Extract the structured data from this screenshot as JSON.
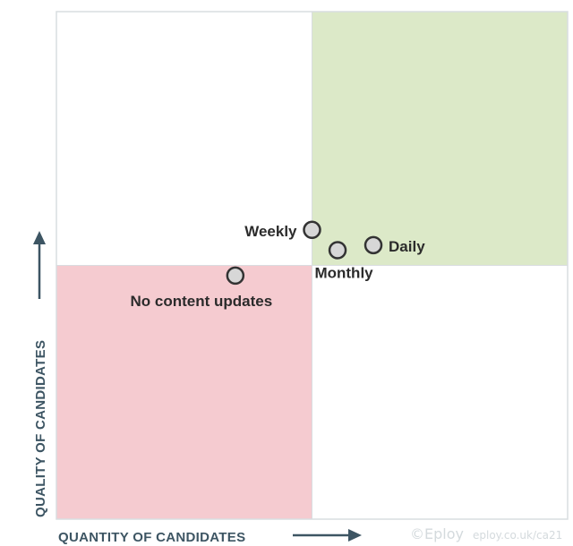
{
  "chart_data": {
    "type": "scatter",
    "title": "",
    "xlabel": "QUANTITY OF CANDIDATES",
    "ylabel": "QUALITY OF CANDIDATES",
    "xlim": [
      0,
      1
    ],
    "ylim": [
      0,
      1
    ],
    "grid": false,
    "quadrants": [
      {
        "position": "top-left",
        "color": "#ffffff"
      },
      {
        "position": "top-right",
        "color": "#dce9c8"
      },
      {
        "position": "bottom-left",
        "color": "#f5cbd0"
      },
      {
        "position": "bottom-right",
        "color": "#ffffff"
      }
    ],
    "points": [
      {
        "label": "Weekly",
        "x": 0.5,
        "y": 0.57
      },
      {
        "label": "Daily",
        "x": 0.62,
        "y": 0.54
      },
      {
        "label": "Monthly",
        "x": 0.55,
        "y": 0.53
      },
      {
        "label": "No content updates",
        "x": 0.35,
        "y": 0.48
      }
    ],
    "point_color": "#d7d7d7",
    "point_outline": "#333333"
  },
  "credit": {
    "brand": "©Eploy",
    "url": "eploy.co.uk/ca21"
  }
}
